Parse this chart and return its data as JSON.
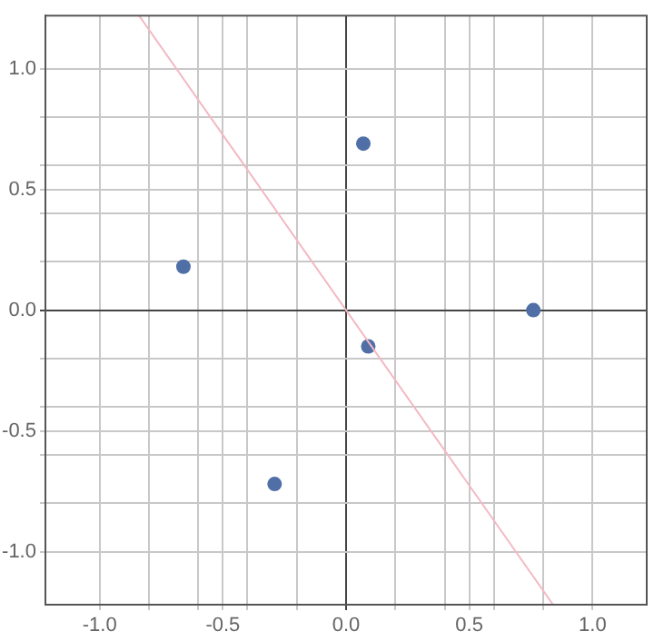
{
  "chart_data": {
    "type": "scatter",
    "xlim": [
      -1.22,
      1.22
    ],
    "ylim": [
      -1.22,
      1.22
    ],
    "xticks": [
      {
        "value": -1.0,
        "label": "-1.0"
      },
      {
        "value": -0.8,
        "label": null
      },
      {
        "value": -0.6,
        "label": null
      },
      {
        "value": -0.5,
        "label": "-0.5"
      },
      {
        "value": -0.4,
        "label": null
      },
      {
        "value": -0.2,
        "label": null
      },
      {
        "value": 0,
        "label": "0.0"
      },
      {
        "value": 0.2,
        "label": null
      },
      {
        "value": 0.4,
        "label": null
      },
      {
        "value": 0.5,
        "label": "0.5"
      },
      {
        "value": 0.6,
        "label": null
      },
      {
        "value": 0.8,
        "label": null
      },
      {
        "value": 1.0,
        "label": "1.0"
      }
    ],
    "yticks": [
      {
        "value": -1.0,
        "label": "-1.0"
      },
      {
        "value": -0.8,
        "label": null
      },
      {
        "value": -0.6,
        "label": null
      },
      {
        "value": -0.5,
        "label": "-0.5"
      },
      {
        "value": -0.4,
        "label": null
      },
      {
        "value": -0.2,
        "label": null
      },
      {
        "value": 0,
        "label": "0.0"
      },
      {
        "value": 0.2,
        "label": null
      },
      {
        "value": 0.4,
        "label": null
      },
      {
        "value": 0.5,
        "label": "0.5"
      },
      {
        "value": 0.6,
        "label": null
      },
      {
        "value": 0.8,
        "label": null
      },
      {
        "value": 1.0,
        "label": "1.0"
      }
    ],
    "grid": true,
    "legend": false,
    "marker": "circle",
    "series": [
      {
        "type": "line",
        "color": "#f4b8c4",
        "x": [
          -0.84,
          0.84
        ],
        "values": [
          1.22,
          -1.22
        ],
        "marker": "none"
      },
      {
        "color": "#4f6fa6",
        "x": [
          -0.66,
          0.07,
          0.76,
          0.09,
          -0.29
        ],
        "values": [
          0.18,
          0.69,
          0.0,
          -0.15,
          -0.72
        ]
      }
    ]
  }
}
